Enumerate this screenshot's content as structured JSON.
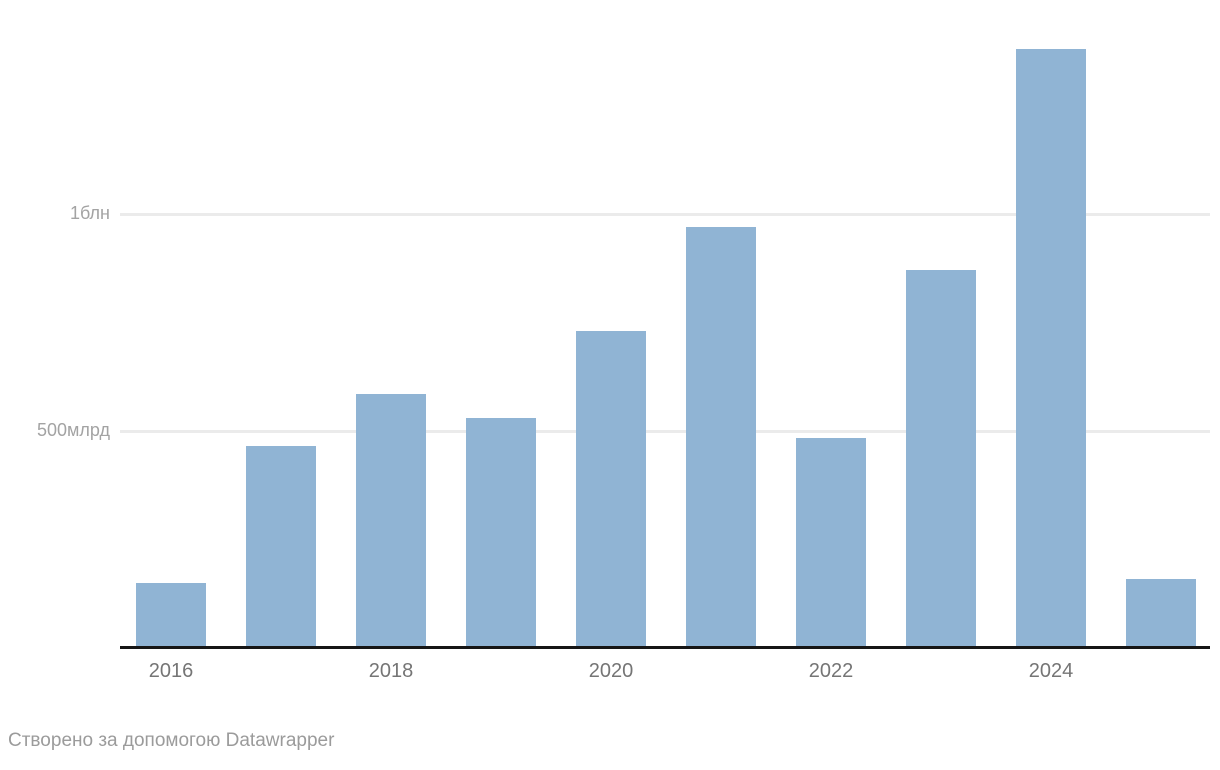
{
  "chart_data": {
    "type": "bar",
    "categories": [
      "2016",
      "2017",
      "2018",
      "2019",
      "2020",
      "2021",
      "2022",
      "2023",
      "2024",
      "2025"
    ],
    "values": [
      150,
      465,
      585,
      530,
      730,
      970,
      485,
      870,
      1380,
      160
    ],
    "values_unit": "billions (млрд)",
    "title": "",
    "xlabel": "",
    "ylabel": "",
    "ylim": [
      0,
      1490
    ],
    "grid": true,
    "legend": false,
    "y_ticks": [
      {
        "value": 500,
        "label": "500млрд"
      },
      {
        "value": 1000,
        "label": "1блн"
      }
    ],
    "x_shown_ticks": [
      {
        "index": 0,
        "label": "2016"
      },
      {
        "index": 2,
        "label": "2018"
      },
      {
        "index": 4,
        "label": "2020"
      },
      {
        "index": 6,
        "label": "2022"
      },
      {
        "index": 8,
        "label": "2024"
      }
    ],
    "colors": {
      "bar": "#90b4d4",
      "gridline": "#ebebeb",
      "axis_line": "#161616",
      "y_label_text": "#a3a3a3",
      "x_label_text": "#757575",
      "footer_text": "#9b9b9b"
    }
  },
  "footer": {
    "text": "Створено за допомогою Datawrapper"
  }
}
